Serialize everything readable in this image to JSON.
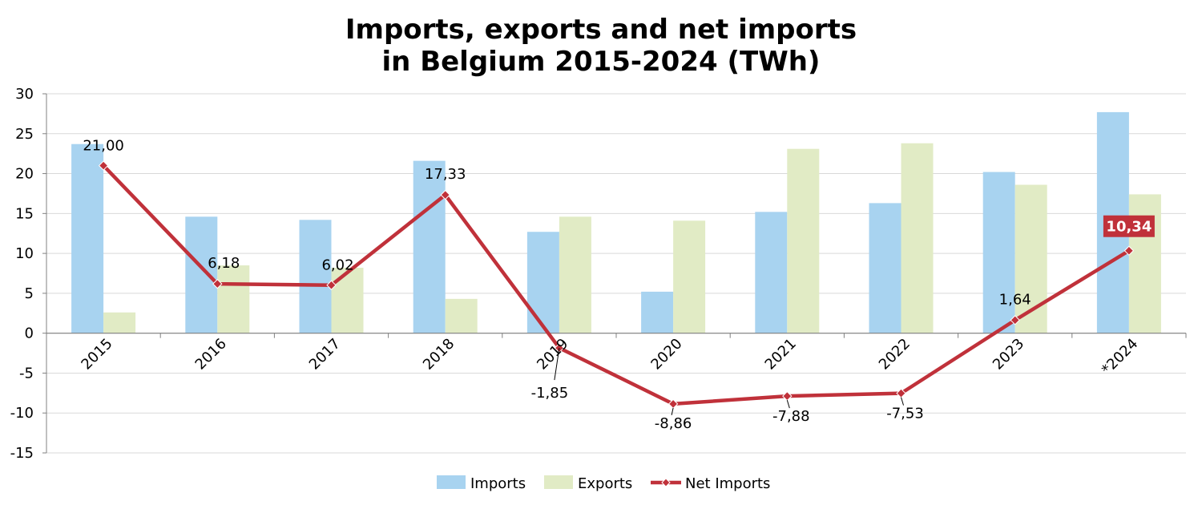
{
  "chart_data": {
    "type": "bar",
    "title": [
      "Imports, exports and net imports",
      "in Belgium 2015-2024 (TWh)"
    ],
    "xlabel": "",
    "ylabel": "",
    "ylim": [
      -15,
      30
    ],
    "yticks": [
      "30",
      "25",
      "20",
      "15",
      "10",
      "5",
      "0",
      "-5",
      "-10",
      "-15"
    ],
    "grid": "horizontal",
    "legend_position": "bottom",
    "categories": [
      "2015",
      "2016",
      "2017",
      "2018",
      "2019",
      "2020",
      "2021",
      "2022",
      "2023",
      "*2024"
    ],
    "series": [
      {
        "name": "Imports",
        "kind": "bar",
        "color": "#a8d3f0",
        "values": [
          23.7,
          14.6,
          14.2,
          21.6,
          12.7,
          5.2,
          15.2,
          16.3,
          20.2,
          27.7
        ]
      },
      {
        "name": "Exports",
        "kind": "bar",
        "color": "#e1ebc5",
        "values": [
          2.6,
          8.5,
          8.2,
          4.3,
          14.6,
          14.1,
          23.1,
          23.8,
          18.6,
          17.4
        ]
      },
      {
        "name": "Net Imports",
        "kind": "line",
        "color": "#c0313a",
        "values": [
          21.0,
          6.18,
          6.02,
          17.33,
          -1.85,
          -8.86,
          -7.88,
          -7.53,
          1.64,
          10.34
        ],
        "labels": [
          "21,00",
          "6,18",
          "6,02",
          "17,33",
          "-1,85",
          "-8,86",
          "-7,88",
          "-7,53",
          "1,64",
          "10,34"
        ],
        "highlight_index": 9
      }
    ]
  }
}
